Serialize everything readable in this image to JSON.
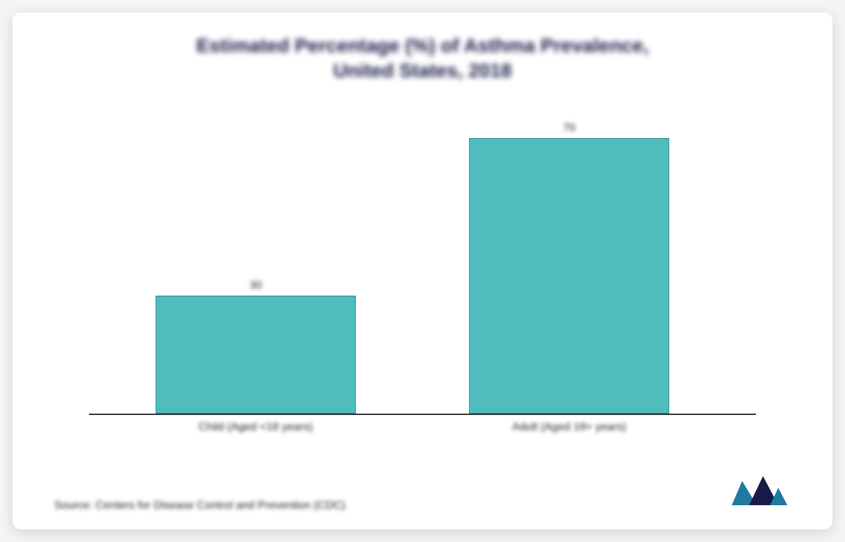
{
  "chart": {
    "type": "bar",
    "title_line1": "Estimated Percentage (%) of Asthma Prevalence,",
    "title_line2": "United States, 2018",
    "title_fontsize": 28,
    "title_color": "#1a1a4a",
    "categories": [
      "Child (Aged <18 years)",
      "Adult (Aged 18+ years)"
    ],
    "values": [
      30,
      70
    ],
    "value_labels": [
      "30",
      "70"
    ],
    "ylim": [
      0,
      75
    ],
    "bar_color": "#4fbdbd",
    "bar_border_color": "#2a8a8a",
    "bar_width_pct": 30,
    "bar_positions_pct": [
      10,
      57
    ],
    "axis_color": "#333333",
    "background_color": "#ffffff",
    "label_fontsize": 16,
    "label_color": "#222222"
  },
  "source_text": "Source: Centers for Disease Control and Prevention (CDC)",
  "logo": {
    "name": "mordor-intelligence-logo",
    "colors": [
      "#1e7a9e",
      "#1a1a4a"
    ]
  }
}
